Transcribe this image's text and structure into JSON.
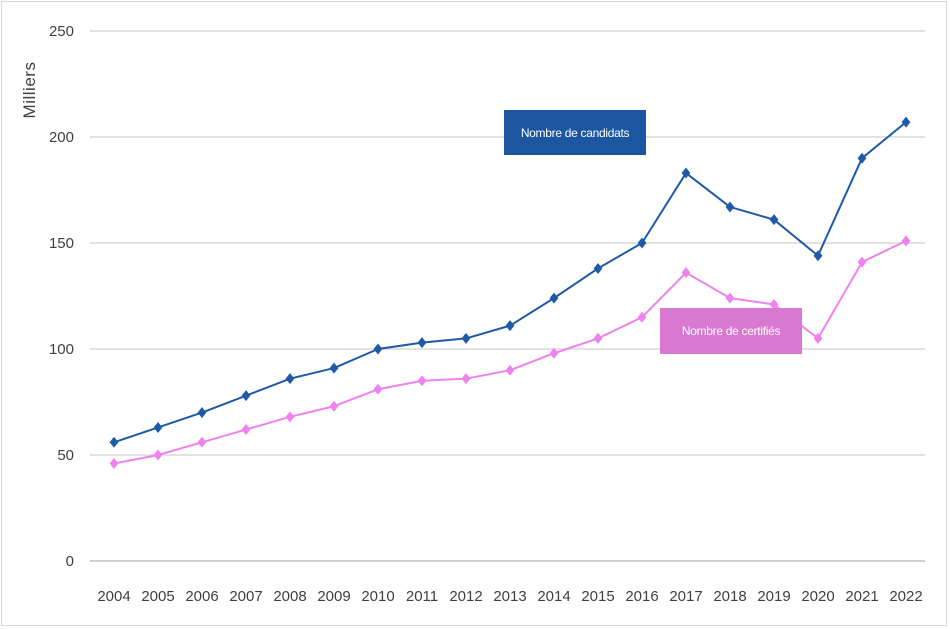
{
  "chart_data": {
    "type": "line",
    "title": "",
    "xlabel": "",
    "ylabel": "Milliers",
    "ylim": [
      0,
      250
    ],
    "yticks": [
      0,
      50,
      100,
      150,
      200,
      250
    ],
    "grid": true,
    "categories": [
      "2004",
      "2005",
      "2006",
      "2007",
      "2008",
      "2009",
      "2010",
      "2011",
      "2012",
      "2013",
      "2014",
      "2015",
      "2016",
      "2017",
      "2018",
      "2019",
      "2020",
      "2021",
      "2022"
    ],
    "series": [
      {
        "name": "Nombre de candidats",
        "color": "#1F5AA6",
        "label_bg": "#1C56A0",
        "values": [
          56,
          63,
          70,
          78,
          86,
          91,
          100,
          103,
          105,
          111,
          124,
          138,
          150,
          183,
          167,
          161,
          144,
          190,
          207
        ]
      },
      {
        "name": "Nombre de certifiés",
        "color": "#EE82EE",
        "label_bg": "#D978D0",
        "values": [
          46,
          50,
          56,
          62,
          68,
          73,
          81,
          85,
          86,
          90,
          98,
          105,
          115,
          136,
          124,
          121,
          105,
          141,
          151
        ]
      }
    ]
  }
}
